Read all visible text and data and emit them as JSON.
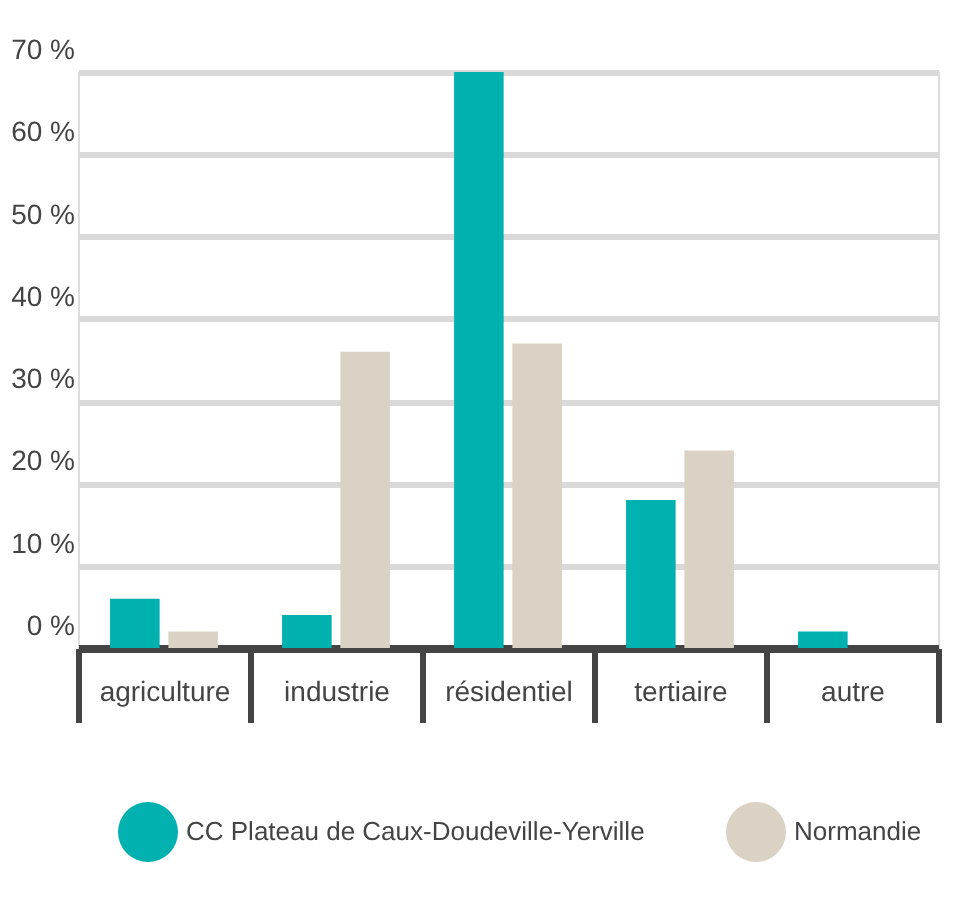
{
  "chart_data": {
    "type": "bar",
    "categories": [
      "agriculture",
      "industrie",
      "résidentiel",
      "tertiaire",
      "autre"
    ],
    "series": [
      {
        "name": "CC Plateau de Caux-Doudeville-Yerville",
        "color": "#00b1af",
        "values": [
          6,
          4,
          70,
          18,
          2
        ]
      },
      {
        "name": "Normandie",
        "color": "#d9d2c5",
        "values": [
          2,
          36,
          37,
          24,
          null
        ]
      }
    ],
    "ylim": [
      0,
      70
    ],
    "yticks": [
      {
        "value": 0,
        "label": "0 %"
      },
      {
        "value": 10,
        "label": "10 %"
      },
      {
        "value": 20,
        "label": "20 %"
      },
      {
        "value": 30,
        "label": "30 %"
      },
      {
        "value": 40,
        "label": "40 %"
      },
      {
        "value": 50,
        "label": "50 %"
      },
      {
        "value": 60,
        "label": "60 %"
      },
      {
        "value": 70,
        "label": "70 %"
      }
    ],
    "grid": "y",
    "legend": "bottom"
  }
}
